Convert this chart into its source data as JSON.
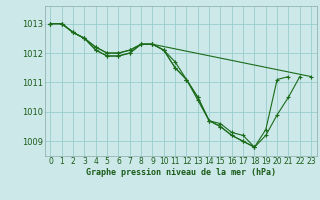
{
  "title": "Graphe pression niveau de la mer (hPa)",
  "bg_color": "#cce8e8",
  "grid_color": "#99cccc",
  "line_color": "#1a6b1a",
  "xlim": [
    -0.5,
    23.5
  ],
  "ylim": [
    1008.5,
    1013.6
  ],
  "yticks": [
    1009,
    1010,
    1011,
    1012,
    1013
  ],
  "xticks": [
    0,
    1,
    2,
    3,
    4,
    5,
    6,
    7,
    8,
    9,
    10,
    11,
    12,
    13,
    14,
    15,
    16,
    17,
    18,
    19,
    20,
    21,
    22,
    23
  ],
  "series": [
    {
      "x": [
        0,
        1,
        2,
        3,
        4,
        5,
        6,
        7,
        8,
        9,
        10,
        11,
        12,
        13,
        14,
        15,
        16,
        17,
        18,
        19,
        20,
        21,
        22
      ],
      "y": [
        1013.0,
        1013.0,
        1012.7,
        1012.5,
        1012.2,
        1012.0,
        1012.0,
        1012.1,
        1012.3,
        1012.3,
        1012.1,
        1011.7,
        1011.1,
        1010.5,
        1009.7,
        1009.6,
        1009.3,
        1009.2,
        1008.8,
        1009.2,
        1009.9,
        1010.5,
        1011.2
      ]
    },
    {
      "x": [
        0,
        1,
        2,
        3,
        4,
        5,
        6,
        7,
        8,
        9,
        10,
        11,
        12,
        13,
        14,
        15,
        16,
        17,
        18
      ],
      "y": [
        1013.0,
        1013.0,
        1012.7,
        1012.5,
        1012.1,
        1011.9,
        1011.9,
        1012.0,
        1012.3,
        1012.3,
        1012.1,
        1011.5,
        1011.1,
        1010.5,
        1009.7,
        1009.5,
        1009.2,
        1009.0,
        1008.8
      ]
    },
    {
      "x": [
        0,
        1,
        2,
        3,
        4,
        5,
        6,
        7,
        8,
        9,
        10,
        11,
        12,
        13,
        14,
        15,
        16,
        17,
        18,
        19,
        20,
        21
      ],
      "y": [
        1013.0,
        1013.0,
        1012.7,
        1012.5,
        1012.1,
        1011.9,
        1011.9,
        1012.0,
        1012.3,
        1012.3,
        1012.1,
        1011.5,
        1011.1,
        1010.4,
        1009.7,
        1009.5,
        1009.2,
        1009.0,
        1008.8,
        1009.4,
        1011.1,
        1011.2
      ]
    },
    {
      "x": [
        0,
        1,
        2,
        3,
        4,
        5,
        6,
        7,
        8,
        9,
        23
      ],
      "y": [
        1013.0,
        1013.0,
        1012.7,
        1012.5,
        1012.2,
        1012.0,
        1012.0,
        1012.1,
        1012.3,
        1012.3,
        1011.2
      ]
    }
  ],
  "xlabel_fontsize": 6.0,
  "tick_fontsize": 5.5
}
